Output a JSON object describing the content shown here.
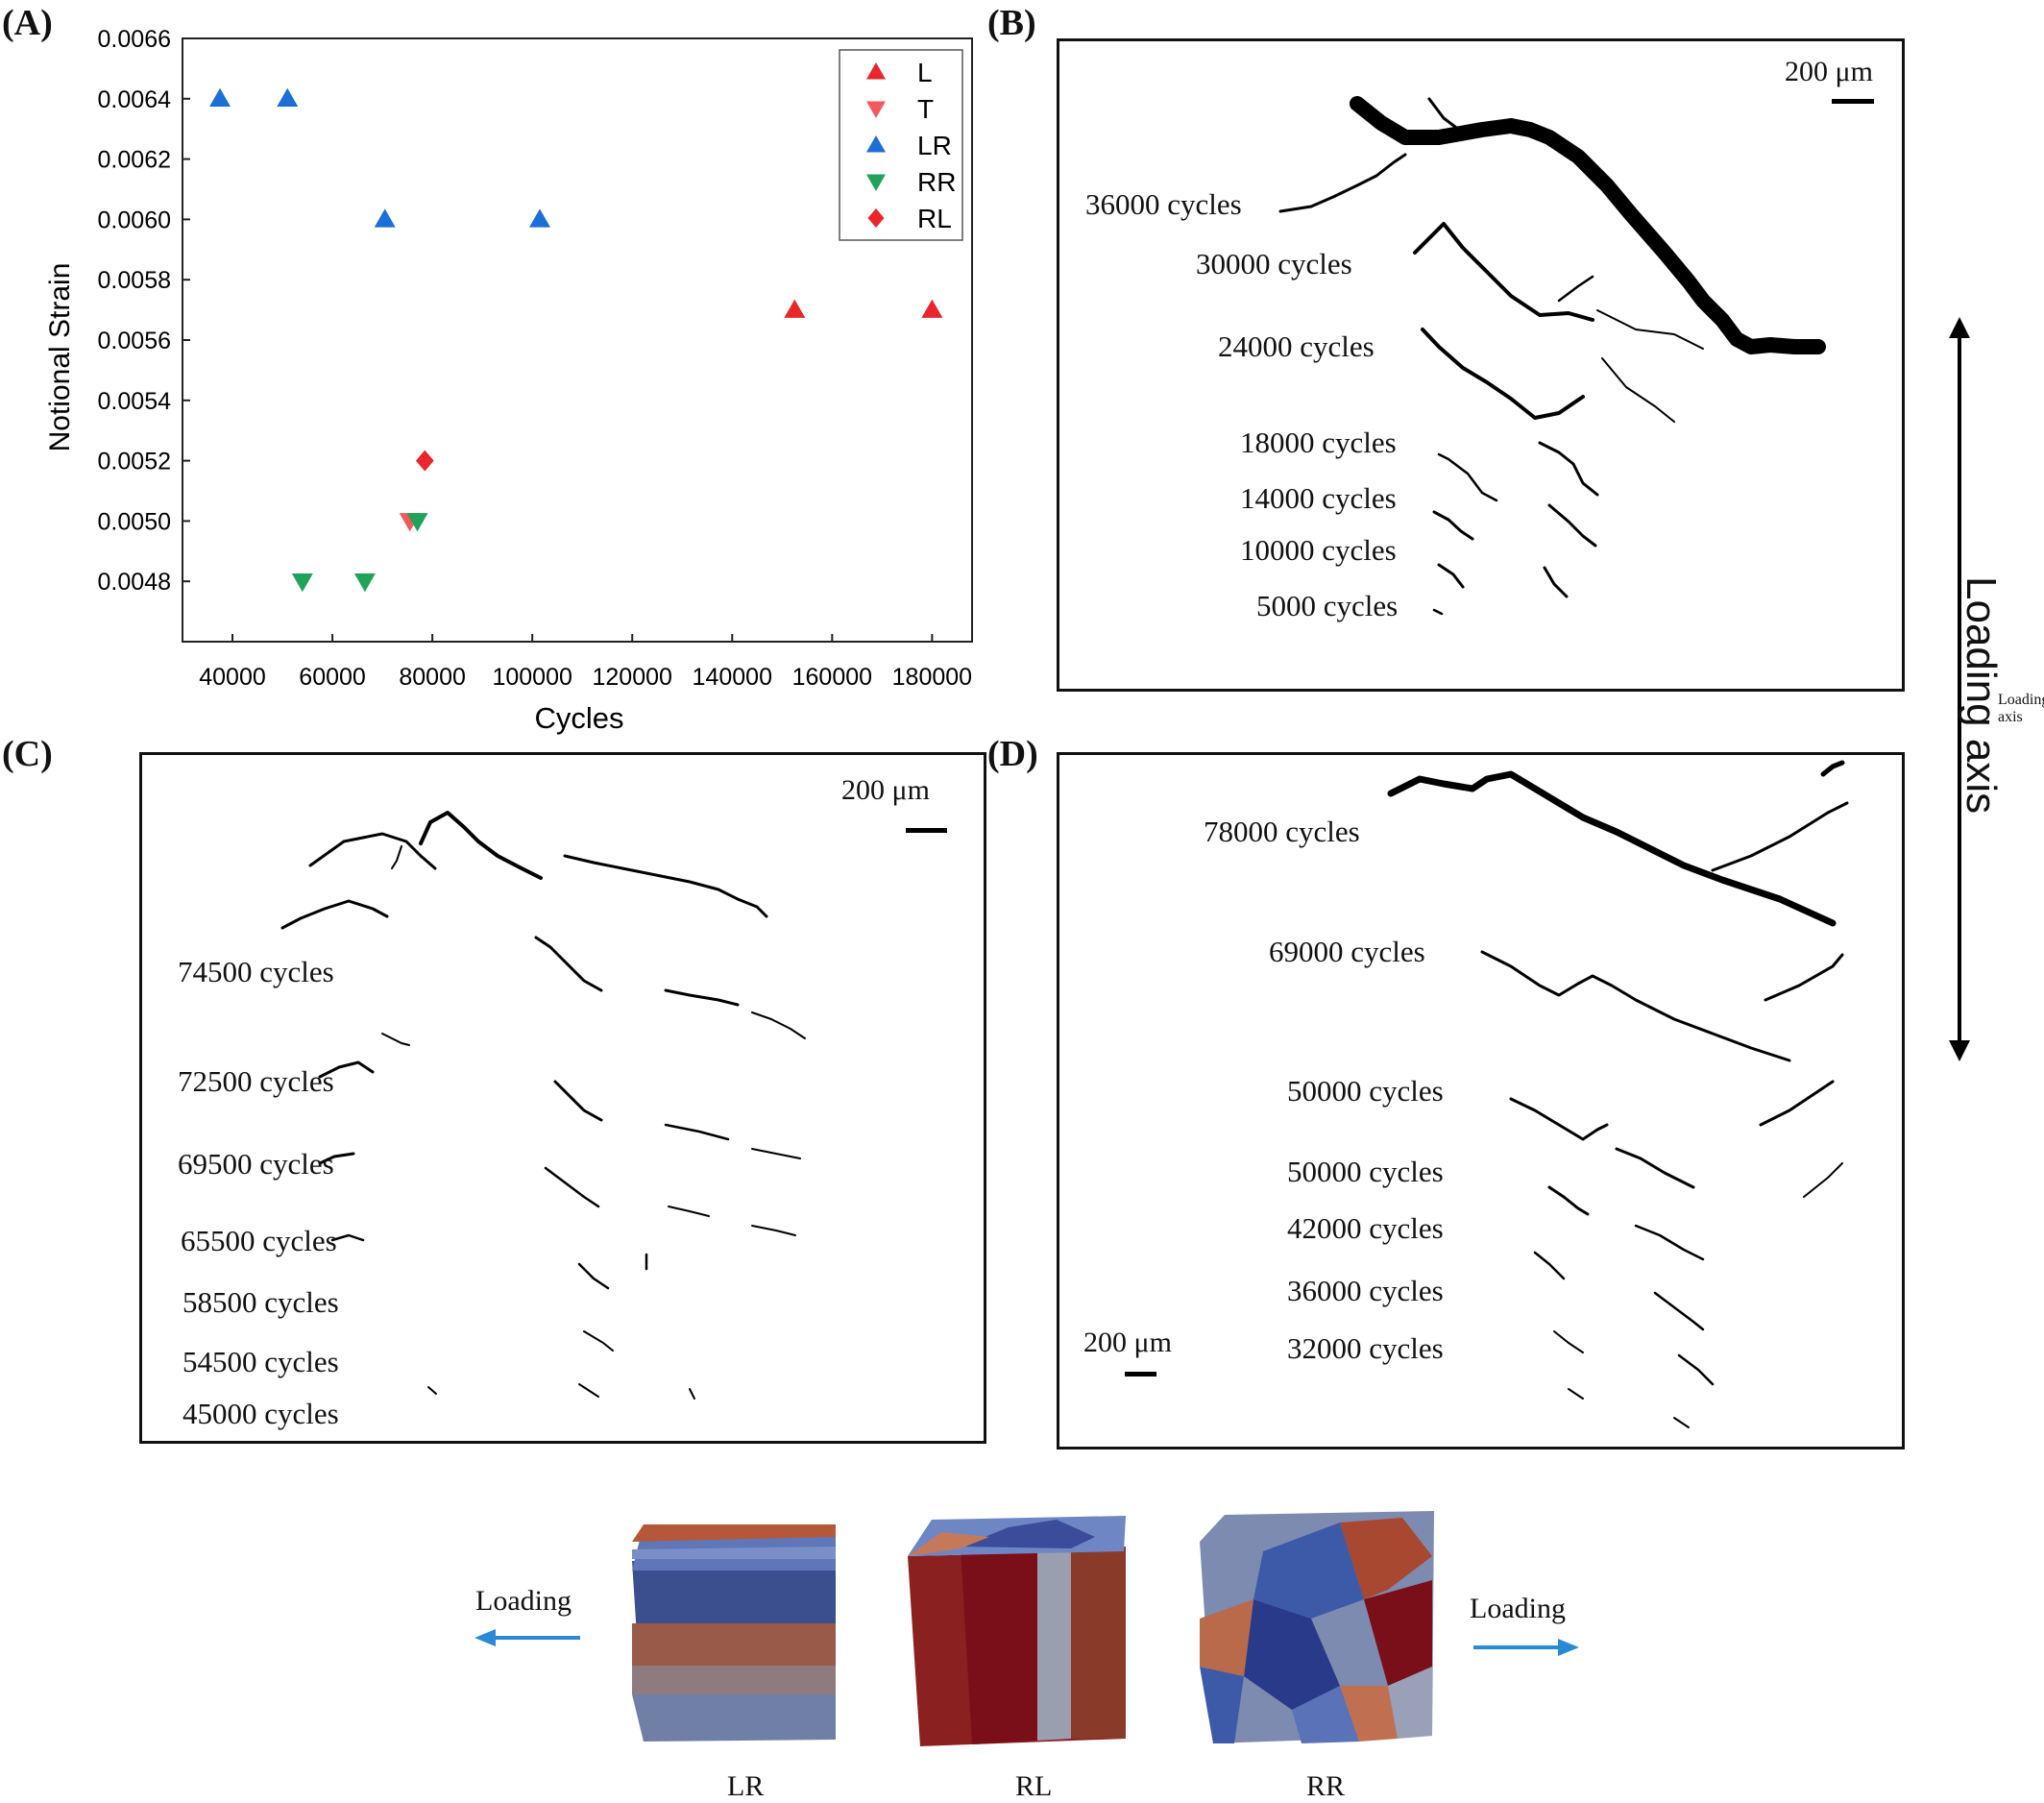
{
  "panels": {
    "a": {
      "letter": "(A)"
    },
    "b": {
      "letter": "(B)",
      "scale_label": "200 μm",
      "labels": [
        "36000 cycles",
        "30000 cycles",
        "24000 cycles",
        "18000 cycles",
        "14000 cycles",
        "10000 cycles",
        "5000 cycles"
      ]
    },
    "c": {
      "letter": "(C)",
      "scale_label": "200 μm",
      "labels": [
        "74500 cycles",
        "72500 cycles",
        "69500 cycles",
        "65500 cycles",
        "58500 cycles",
        "54500 cycles",
        "45000 cycles"
      ]
    },
    "d": {
      "letter": "(D)",
      "scale_label": "200 μm",
      "labels": [
        "78000 cycles",
        "69000 cycles",
        "50000 cycles",
        "50000 cycles",
        "42000 cycles",
        "36000 cycles",
        "32000 cycles"
      ]
    }
  },
  "loading_axis_label": "Loading axis",
  "cubes": {
    "left_loading": "Loading",
    "right_loading": "Loading",
    "labels": [
      "LR",
      "RL",
      "RR"
    ]
  },
  "chart_data": {
    "type": "scatter",
    "xlabel": "Cycles",
    "ylabel": "Notional Strain",
    "xlim": [
      30000,
      188000
    ],
    "ylim": [
      0.0046,
      0.0066
    ],
    "x_ticks": [
      "40000",
      "60000",
      "80000",
      "100000",
      "120000",
      "140000",
      "160000",
      "180000"
    ],
    "x_tick_extra": "6",
    "y_ticks": [
      "0.0048",
      "0.0050",
      "0.0052",
      "0.0054",
      "0.0056",
      "0.0058",
      "0.0060",
      "0.0062",
      "0.0064",
      "0.0066"
    ],
    "legend_position": "top-right",
    "series": [
      {
        "name": "L",
        "marker": "triangle-up",
        "color": "#e8262b",
        "points": [
          [
            152500,
            0.0057
          ],
          [
            180000,
            0.0057
          ]
        ]
      },
      {
        "name": "T",
        "marker": "triangle-down",
        "color": "#f05a5a",
        "points": [
          [
            75500,
            0.005
          ]
        ]
      },
      {
        "name": "LR",
        "marker": "triangle-up",
        "color": "#1c6fd8",
        "points": [
          [
            37500,
            0.0064
          ],
          [
            51000,
            0.0064
          ],
          [
            70500,
            0.006
          ],
          [
            101500,
            0.006
          ]
        ]
      },
      {
        "name": "RR",
        "marker": "triangle-down",
        "color": "#1fa35a",
        "points": [
          [
            54000,
            0.0048
          ],
          [
            66500,
            0.0048
          ],
          [
            77000,
            0.005
          ]
        ]
      },
      {
        "name": "RL",
        "marker": "diamond",
        "color": "#e8262b",
        "points": [
          [
            78500,
            0.0052
          ]
        ]
      }
    ]
  }
}
